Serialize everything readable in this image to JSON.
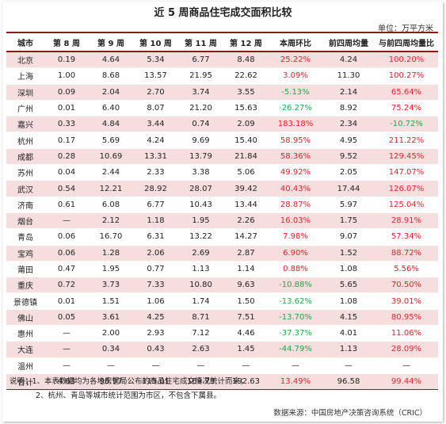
{
  "title": "近 5 周商品住宅成交面积比较",
  "unit": "单位：万平方米",
  "headers": [
    "城市",
    "第 8 周",
    "第 9 周",
    "第 10 周",
    "第 11 周",
    "第 12 周",
    "本周环比",
    "前四周均量",
    "与前四周均量比"
  ],
  "rows": [
    {
      "city": "北京",
      "w8": "0.19",
      "w9": "4.64",
      "w10": "5.34",
      "w11": "6.77",
      "w12": "8.48",
      "wow": "25.22%",
      "avg": "4.24",
      "vsavg": "100.20%"
    },
    {
      "city": "上海",
      "w8": "1.00",
      "w9": "8.68",
      "w10": "13.57",
      "w11": "21.95",
      "w12": "22.62",
      "wow": "3.09%",
      "avg": "11.30",
      "vsavg": "100.27%"
    },
    {
      "city": "深圳",
      "w8": "0.09",
      "w9": "2.04",
      "w10": "2.70",
      "w11": "3.74",
      "w12": "3.55",
      "wow": "-5.13%",
      "avg": "2.14",
      "vsavg": "65.64%"
    },
    {
      "city": "广州",
      "w8": "0.01",
      "w9": "6.40",
      "w10": "8.07",
      "w11": "21.20",
      "w12": "15.63",
      "wow": "-26.27%",
      "avg": "8.92",
      "vsavg": "75.24%"
    },
    {
      "city": "嘉兴",
      "w8": "0.33",
      "w9": "4.84",
      "w10": "3.44",
      "w11": "0.74",
      "w12": "2.09",
      "wow": "183.18%",
      "avg": "2.34",
      "vsavg": "-10.72%"
    },
    {
      "city": "杭州",
      "w8": "0.17",
      "w9": "5.69",
      "w10": "4.24",
      "w11": "9.69",
      "w12": "15.40",
      "wow": "58.95%",
      "avg": "4.95",
      "vsavg": "211.22%"
    },
    {
      "city": "成都",
      "w8": "0.28",
      "w9": "10.69",
      "w10": "13.31",
      "w11": "13.79",
      "w12": "21.84",
      "wow": "58.36%",
      "avg": "9.52",
      "vsavg": "129.45%"
    },
    {
      "city": "苏州",
      "w8": "0.04",
      "w9": "2.44",
      "w10": "2.33",
      "w11": "3.38",
      "w12": "5.06",
      "wow": "49.92%",
      "avg": "2.05",
      "vsavg": "147.07%"
    },
    {
      "city": "武汉",
      "w8": "0.54",
      "w9": "12.21",
      "w10": "28.92",
      "w11": "28.07",
      "w12": "39.42",
      "wow": "40.43%",
      "avg": "17.44",
      "vsavg": "126.07%"
    },
    {
      "city": "济南",
      "w8": "0.61",
      "w9": "6.08",
      "w10": "6.77",
      "w11": "10.43",
      "w12": "13.44",
      "wow": "28.87%",
      "avg": "5.97",
      "vsavg": "125.04%"
    },
    {
      "city": "烟台",
      "w8": "—",
      "w9": "2.12",
      "w10": "1.18",
      "w11": "1.95",
      "w12": "2.26",
      "wow": "16.03%",
      "avg": "1.75",
      "vsavg": "28.91%"
    },
    {
      "city": "青岛",
      "w8": "0.06",
      "w9": "16.70",
      "w10": "6.31",
      "w11": "13.22",
      "w12": "14.27",
      "wow": "7.98%",
      "avg": "9.07",
      "vsavg": "57.34%"
    },
    {
      "city": "宝鸡",
      "w8": "0.06",
      "w9": "1.28",
      "w10": "2.06",
      "w11": "2.69",
      "w12": "2.87",
      "wow": "6.90%",
      "avg": "1.52",
      "vsavg": "88.72%"
    },
    {
      "city": "莆田",
      "w8": "0.47",
      "w9": "1.95",
      "w10": "0.77",
      "w11": "1.13",
      "w12": "1.14",
      "wow": "0.88%",
      "avg": "1.08",
      "vsavg": "5.56%"
    },
    {
      "city": "重庆",
      "w8": "0.72",
      "w9": "3.73",
      "w10": "7.33",
      "w11": "10.80",
      "w12": "9.63",
      "wow": "-10.88%",
      "avg": "5.65",
      "vsavg": "70.50%"
    },
    {
      "city": "景德镇",
      "w8": "0.01",
      "w9": "1.51",
      "w10": "1.06",
      "w11": "1.74",
      "w12": "1.50",
      "wow": "-13.62%",
      "avg": "1.08",
      "vsavg": "39.01%"
    },
    {
      "city": "佛山",
      "w8": "0.05",
      "w9": "3.61",
      "w10": "4.25",
      "w11": "8.71",
      "w12": "7.51",
      "wow": "-13.70%",
      "avg": "4.15",
      "vsavg": "80.95%"
    },
    {
      "city": "惠州",
      "w8": "—",
      "w9": "2.00",
      "w10": "2.93",
      "w11": "7.12",
      "w12": "4.46",
      "wow": "-37.37%",
      "avg": "4.01",
      "vsavg": "11.06%"
    },
    {
      "city": "大连",
      "w8": "—",
      "w9": "0.34",
      "w10": "0.43",
      "w11": "2.63",
      "w12": "1.45",
      "wow": "-44.79%",
      "avg": "1.13",
      "vsavg": "28.09%"
    },
    {
      "city": "温州",
      "w8": "—",
      "w9": "—",
      "w10": "—",
      "w11": "—",
      "w12": "—",
      "wow": "—",
      "avg": "—",
      "vsavg": "—"
    }
  ],
  "total": {
    "city": "合计",
    "w8": "4.63",
    "w9": "96.97",
    "w10": "115.01",
    "w11": "169.73",
    "w12": "192.63",
    "wow": "13.49%",
    "avg": "96.58",
    "vsavg": "99.44%"
  },
  "notes": {
    "line1": "说明：1、本表数据均为各地房管局公布的商品住宅成交情况统计而来；",
    "line2": "2、杭州、青岛等城市统计范围为市区，不包含下属县。"
  },
  "source": "数据来源：中国房地产决策咨询系统（CRIC）",
  "colors": {
    "up": "#e8202a",
    "down": "#1fa84a",
    "band": "#f6dede",
    "rule": "#8b1a1a"
  }
}
